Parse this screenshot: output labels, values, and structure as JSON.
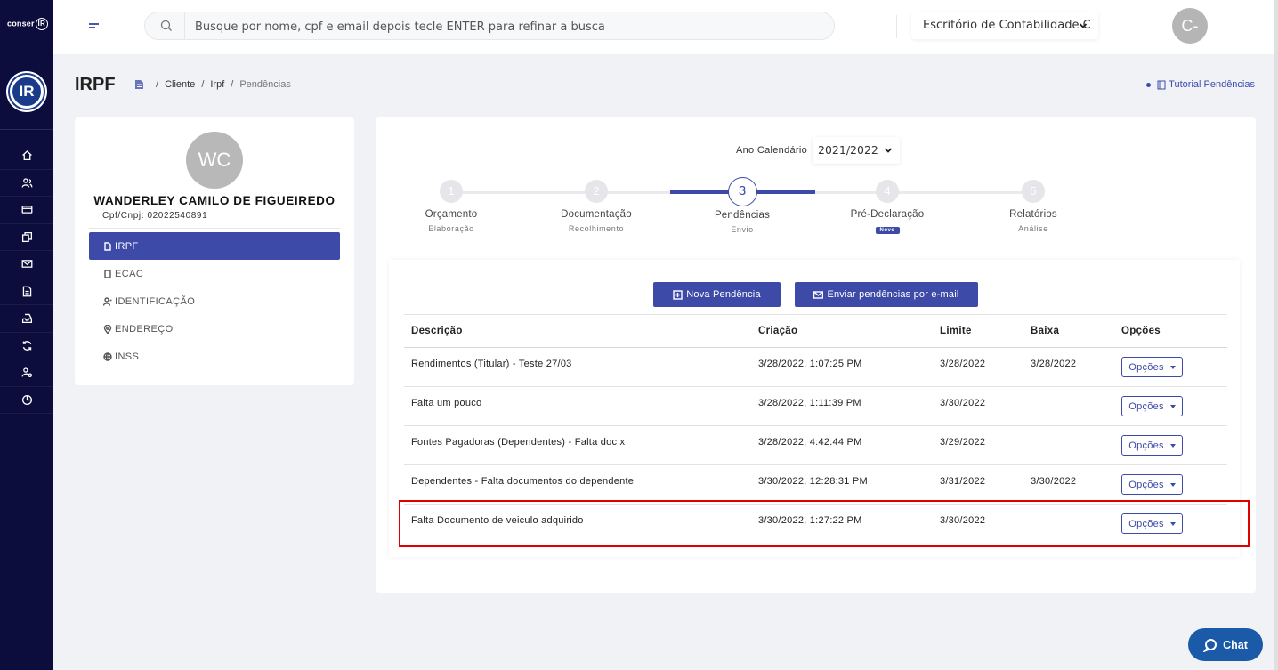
{
  "brand": {
    "text": "conser",
    "mark": "IR",
    "logo_text": "IR"
  },
  "search": {
    "placeholder": "Busque por nome, cpf e email depois tecle ENTER para refinar a busca"
  },
  "office": {
    "selected": "Escritório de Contabilidade C"
  },
  "user": {
    "initials": "C-"
  },
  "page": {
    "title": "IRPF"
  },
  "breadcrumb": {
    "items": [
      "Cliente",
      "Irpf",
      "Pendências"
    ]
  },
  "tutorial": {
    "label": "Tutorial Pendências"
  },
  "client": {
    "initials": "WC",
    "name": "WANDERLEY CAMILO DE FIGUEIREDO",
    "cpf": "Cpf/Cnpj: 02022540891",
    "menu": [
      "IRPF",
      "ECAC",
      "IDENTIFICAÇÃO",
      "ENDEREÇO",
      "INSS"
    ]
  },
  "year": {
    "label": "Ano Calendário",
    "selected": "2021/2022"
  },
  "steps": [
    {
      "num": "1",
      "title": "Orçamento",
      "sub": "Elaboração"
    },
    {
      "num": "2",
      "title": "Documentação",
      "sub": "Recolhimento"
    },
    {
      "num": "3",
      "title": "Pendências",
      "sub": "Envio"
    },
    {
      "num": "4",
      "title": "Pré-Declaração",
      "badge": "Novo"
    },
    {
      "num": "5",
      "title": "Relatórios",
      "sub": "Análise"
    }
  ],
  "actions": {
    "new": "Nova Pendência",
    "send": "Enviar pendências por e-mail"
  },
  "table": {
    "headers": [
      "Descrição",
      "Criação",
      "Limite",
      "Baixa",
      "Opções"
    ],
    "option_label": "Opções",
    "rows": [
      {
        "desc": "Rendimentos (Titular) - Teste 27/03",
        "created": "3/28/2022, 1:07:25 PM",
        "limit": "3/28/2022",
        "done": "3/28/2022"
      },
      {
        "desc": "Falta um pouco",
        "created": "3/28/2022, 1:11:39 PM",
        "limit": "3/30/2022",
        "done": ""
      },
      {
        "desc": "Fontes Pagadoras (Dependentes) - Falta doc x",
        "created": "3/28/2022, 4:42:44 PM",
        "limit": "3/29/2022",
        "done": ""
      },
      {
        "desc": "Dependentes - Falta documentos do dependente",
        "created": "3/30/2022, 12:28:31 PM",
        "limit": "3/31/2022",
        "done": "3/30/2022"
      },
      {
        "desc": "Falta Documento de veiculo adquirido",
        "created": "3/30/2022, 1:27:22 PM",
        "limit": "3/30/2022",
        "done": ""
      }
    ]
  },
  "chat": {
    "label": "Chat"
  },
  "colors": {
    "primary": "#3e4aa8",
    "sidebar": "#0d0d3d",
    "highlight": "#e00000",
    "chat": "#1a5aa8"
  }
}
